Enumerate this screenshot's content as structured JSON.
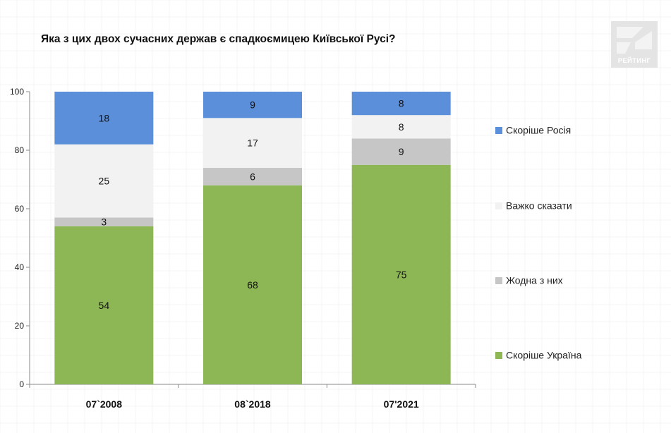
{
  "title": "Яка з цих двох сучасних держав є спадкоємицею Київської Русі?",
  "logo_text": "РЕЙТИНГ",
  "colors": {
    "russia": "#5b8fd9",
    "hard_to_say": "#f2f2f2",
    "neither": "#c6c6c6",
    "ukraine": "#8db654"
  },
  "chart_data": {
    "type": "bar",
    "stacked": true,
    "categories": [
      "07`2008",
      "08`2018",
      "07'2021"
    ],
    "series": [
      {
        "name": "Скоріше Україна",
        "values": [
          54,
          68,
          75
        ],
        "color_key": "ukraine"
      },
      {
        "name": "Жодна з них",
        "values": [
          3,
          6,
          9
        ],
        "color_key": "neither"
      },
      {
        "name": "Важко сказати",
        "values": [
          25,
          17,
          8
        ],
        "color_key": "hard_to_say"
      },
      {
        "name": "Скоріше Росія",
        "values": [
          18,
          9,
          8
        ],
        "color_key": "russia"
      }
    ],
    "yticks": [
      0,
      20,
      40,
      60,
      80,
      100
    ],
    "ylim": [
      0,
      100
    ],
    "legend_position": "right",
    "legend_order": [
      "Скоріше Росія",
      "Важко сказати",
      "Жодна з них",
      "Скоріше Україна"
    ],
    "grid": false
  }
}
